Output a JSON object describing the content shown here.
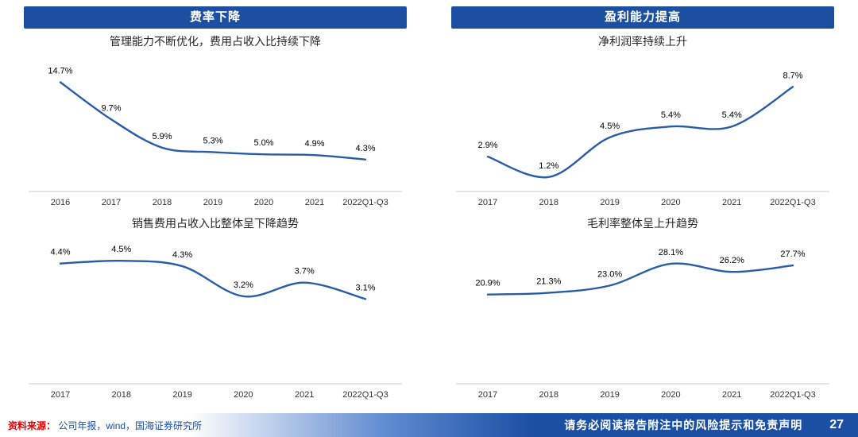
{
  "panels": [
    {
      "header": "费率下降"
    },
    {
      "header": "盈利能力提高"
    }
  ],
  "theme": {
    "banner_bg": "#1d4fa1",
    "line_color": "#2a5ca8",
    "axis_color": "#cccccc",
    "value_label_color": "#000000",
    "category_label_color": "#333333",
    "footer_blue": "#1b4fa3",
    "source_red": "#e60000"
  },
  "chart_data": [
    {
      "type": "line",
      "title": "管理能力不断优化，费用占收入比持续下降",
      "categories": [
        "2016",
        "2017",
        "2018",
        "2019",
        "2020",
        "2021",
        "2022Q1-Q3"
      ],
      "values": [
        14.7,
        9.7,
        5.9,
        5.3,
        5.0,
        4.9,
        4.3
      ],
      "labels": [
        "14.7%",
        "9.7%",
        "5.9%",
        "5.3%",
        "5.0%",
        "4.9%",
        "4.3%"
      ],
      "xlabel": "",
      "ylabel": "",
      "ylim": [
        0,
        17
      ],
      "grid": false,
      "legend": "none"
    },
    {
      "type": "line",
      "title": "净利润率持续上升",
      "categories": [
        "2017",
        "2018",
        "2019",
        "2020",
        "2021",
        "2022Q1-Q3"
      ],
      "values": [
        2.9,
        1.2,
        4.5,
        5.4,
        5.4,
        8.7
      ],
      "labels": [
        "2.9%",
        "1.2%",
        "4.5%",
        "5.4%",
        "5.4%",
        "8.7%"
      ],
      "xlabel": "",
      "ylabel": "",
      "ylim": [
        0,
        10.5
      ],
      "grid": false,
      "legend": "none"
    },
    {
      "type": "line",
      "title": "销售费用占收入比整体呈下降趋势",
      "categories": [
        "2017",
        "2018",
        "2019",
        "2020",
        "2021",
        "2022Q1-Q3"
      ],
      "values": [
        4.4,
        4.5,
        4.3,
        3.2,
        3.7,
        3.1
      ],
      "labels": [
        "4.4%",
        "4.5%",
        "4.3%",
        "3.2%",
        "3.7%",
        "3.1%"
      ],
      "xlabel": "",
      "ylabel": "",
      "ylim": [
        0,
        5
      ],
      "grid": false,
      "legend": "none"
    },
    {
      "type": "line",
      "title": "毛利率整体呈上升趋势",
      "categories": [
        "2017",
        "2018",
        "2019",
        "2020",
        "2021",
        "2022Q1-Q3"
      ],
      "values": [
        20.9,
        21.3,
        23.0,
        28.1,
        26.2,
        27.7
      ],
      "labels": [
        "20.9%",
        "21.3%",
        "23.0%",
        "28.1%",
        "26.2%",
        "27.7%"
      ],
      "xlabel": "",
      "ylabel": "",
      "ylim": [
        0,
        32
      ],
      "grid": false,
      "legend": "none"
    }
  ],
  "footer": {
    "source_label": "资料来源：",
    "source_text": "公司年报，wind，国海证券研究所",
    "disclaimer": "请务必阅读报告附注中的风险提示和免责声明",
    "page_number": "27"
  }
}
